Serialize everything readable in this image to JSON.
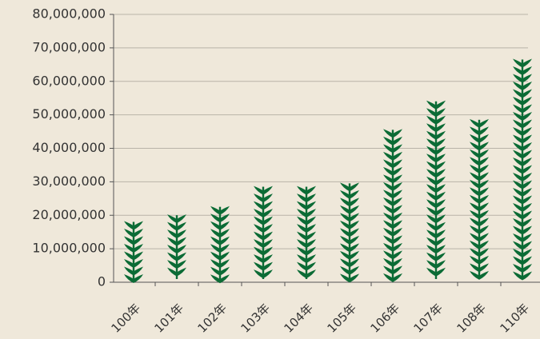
{
  "chart_data": {
    "type": "pictograph",
    "categories": [
      "100年",
      "101年",
      "102年",
      "103年",
      "104年",
      "105年",
      "106年",
      "107年",
      "108年",
      "110年"
    ],
    "values": [
      18500000,
      20500000,
      23000000,
      29000000,
      29000000,
      30000000,
      46000000,
      54500000,
      49000000,
      67000000
    ],
    "color": "#0b6b35",
    "ylim": [
      0,
      80000000
    ],
    "yticks": [
      0,
      {
        "value": 10000000,
        "label": "10,000,000"
      },
      {
        "value": 20000000,
        "label": "20,000,000"
      },
      {
        "value": 30000000,
        "label": "30,000,000"
      },
      {
        "value": 40000000,
        "label": "40,000,000"
      },
      {
        "value": 50000000,
        "label": "50,000,000"
      },
      {
        "value": 60000000,
        "label": "60,000,000"
      },
      {
        "value": 70000000,
        "label": "70,000,000"
      },
      {
        "value": 80000000,
        "label": "80,000,000"
      }
    ],
    "grid": true
  }
}
